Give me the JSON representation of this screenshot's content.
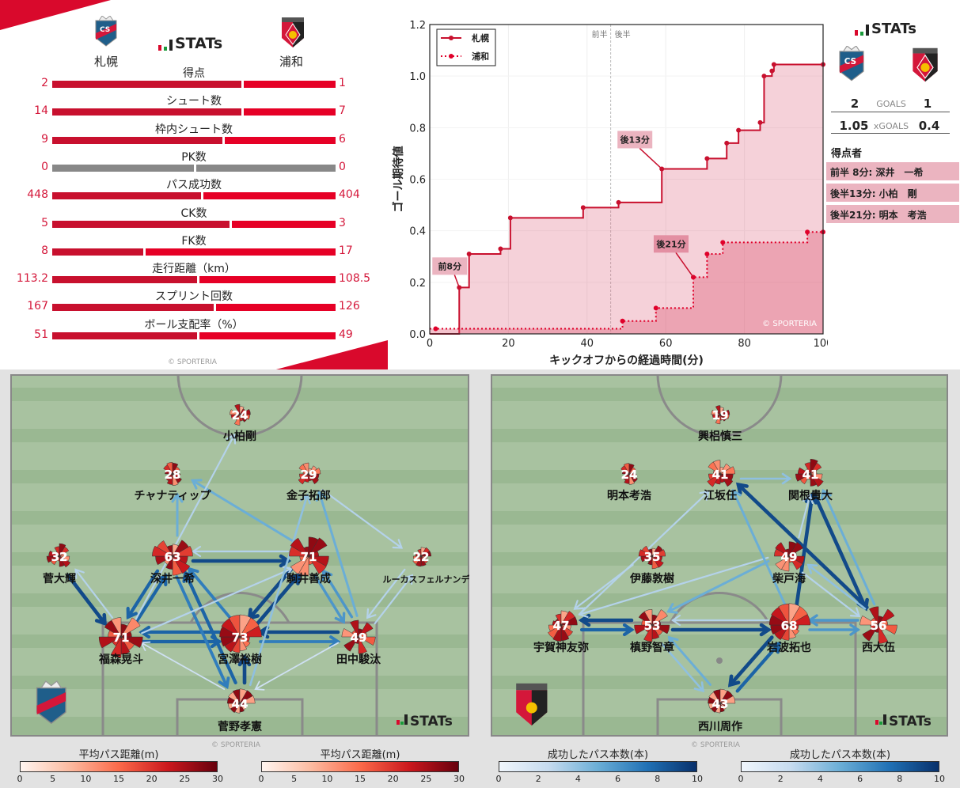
{
  "summary": {
    "stats_brand": "STATs",
    "home_team": "札幌",
    "away_team": "浦和",
    "copyright": "© SPORTERIA",
    "rows": [
      {
        "label": "得点",
        "home": "2",
        "away": "1",
        "home_num": 2,
        "away_num": 1
      },
      {
        "label": "シュート数",
        "home": "14",
        "away": "7",
        "home_num": 14,
        "away_num": 7
      },
      {
        "label": "枠内シュート数",
        "home": "9",
        "away": "6",
        "home_num": 9,
        "away_num": 6
      },
      {
        "label": "PK数",
        "home": "0",
        "away": "0",
        "home_num": 0,
        "away_num": 0
      },
      {
        "label": "パス成功数",
        "home": "448",
        "away": "404",
        "home_num": 448,
        "away_num": 404
      },
      {
        "label": "CK数",
        "home": "5",
        "away": "3",
        "home_num": 5,
        "away_num": 3
      },
      {
        "label": "FK数",
        "home": "8",
        "away": "17",
        "home_num": 8,
        "away_num": 17
      },
      {
        "label": "走行距離（km）",
        "home": "113.2",
        "away": "108.5",
        "home_num": 113.2,
        "away_num": 108.5
      },
      {
        "label": "スプリント回数",
        "home": "167",
        "away": "126",
        "home_num": 167,
        "away_num": 126
      },
      {
        "label": "ボール支配率（%）",
        "home": "51",
        "away": "49",
        "home_num": 51,
        "away_num": 49
      }
    ]
  },
  "goals_panel": {
    "brand": "STATs",
    "goals_label": "GOALS",
    "home_goals": "2",
    "away_goals": "1",
    "xgoals_label": "xGOALS",
    "home_xg": "1.05",
    "away_xg": "0.4",
    "scorers_title": "得点者",
    "scorers": [
      "前半  8分: 深井　一希",
      "後半13分: 小柏　剛",
      "後半21分: 明本　考浩"
    ]
  },
  "chart_data": {
    "type": "line",
    "step": "post",
    "xlabel": "キックオフからの経過時間(分)",
    "ylabel": "ゴール期待値",
    "xlim": [
      0,
      100
    ],
    "ylim": [
      0,
      1.2
    ],
    "xticks": [
      0,
      20,
      40,
      60,
      80,
      100
    ],
    "yticks": [
      0.0,
      0.2,
      0.4,
      0.6,
      0.8,
      1.0,
      1.2
    ],
    "halftime": 46,
    "half_labels": [
      "前半",
      "後半"
    ],
    "legend_position": "top-left",
    "watermark": "© SPORTERIA",
    "series": [
      {
        "name": "札幌",
        "style": "solid",
        "color": "#c8102e",
        "x": [
          0,
          7.5,
          10,
          18,
          20.5,
          39,
          48,
          59,
          70.5,
          75.5,
          78.5,
          84,
          85,
          87,
          87.5,
          100
        ],
        "y": [
          0,
          0.18,
          0.31,
          0.33,
          0.45,
          0.49,
          0.51,
          0.64,
          0.68,
          0.74,
          0.79,
          0.82,
          1.0,
          1.02,
          1.045,
          1.045
        ]
      },
      {
        "name": "浦和",
        "style": "dotted",
        "color": "#e0002a",
        "x": [
          1.5,
          49,
          57.5,
          67,
          70.5,
          74.5,
          96,
          100
        ],
        "y": [
          0.02,
          0.05,
          0.1,
          0.22,
          0.31,
          0.355,
          0.395,
          0.395
        ]
      }
    ],
    "annotations": [
      {
        "text": "前8分",
        "x": 7.5,
        "y": 0.18,
        "series": 0
      },
      {
        "text": "後13分",
        "x": 59,
        "y": 0.64,
        "series": 0
      },
      {
        "text": "後21分",
        "x": 67,
        "y": 0.22,
        "series": 1
      }
    ]
  },
  "pass_maps": [
    {
      "team": "札幌",
      "brand": "STATs",
      "copyright": "© SPORTERIA",
      "players": [
        {
          "name": "小柏剛",
          "passes": 24
        },
        {
          "name": "チャナティップ",
          "passes": 28
        },
        {
          "name": "金子拓郎",
          "passes": 29
        },
        {
          "name": "菅大輝",
          "passes": 32
        },
        {
          "name": "深井一希",
          "passes": 63
        },
        {
          "name": "駒井善成",
          "passes": 71
        },
        {
          "name": "ルーカスフェルナンデス",
          "passes": 22
        },
        {
          "name": "福森晃斗",
          "passes": 71
        },
        {
          "name": "宮澤裕樹",
          "passes": 73
        },
        {
          "name": "田中駿汰",
          "passes": 49
        },
        {
          "name": "菅野孝憲",
          "passes": 44
        }
      ],
      "links": [
        {
          "from": 7,
          "to": 4,
          "count": 8
        },
        {
          "from": 4,
          "to": 7,
          "count": 8
        },
        {
          "from": 3,
          "to": 7,
          "count": 9
        },
        {
          "from": 7,
          "to": 3,
          "count": 3
        },
        {
          "from": 7,
          "to": 8,
          "count": 8
        },
        {
          "from": 8,
          "to": 7,
          "count": 8
        },
        {
          "from": 8,
          "to": 9,
          "count": 7
        },
        {
          "from": 9,
          "to": 8,
          "count": 9
        },
        {
          "from": 4,
          "to": 5,
          "count": 9
        },
        {
          "from": 5,
          "to": 4,
          "count": 3
        },
        {
          "from": 8,
          "to": 5,
          "count": 9
        },
        {
          "from": 5,
          "to": 8,
          "count": 9
        },
        {
          "from": 4,
          "to": 10,
          "count": 7
        },
        {
          "from": 10,
          "to": 4,
          "count": 8
        },
        {
          "from": 8,
          "to": 4,
          "count": 7
        },
        {
          "from": 10,
          "to": 8,
          "count": 9
        },
        {
          "from": 9,
          "to": 5,
          "count": 6
        },
        {
          "from": 5,
          "to": 9,
          "count": 6
        },
        {
          "from": 9,
          "to": 2,
          "count": 5
        },
        {
          "from": 2,
          "to": 6,
          "count": 3
        },
        {
          "from": 5,
          "to": 1,
          "count": 5
        },
        {
          "from": 7,
          "to": 0,
          "count": 3
        },
        {
          "from": 4,
          "to": 1,
          "count": 5
        },
        {
          "from": 6,
          "to": 9,
          "count": 3
        },
        {
          "from": 9,
          "to": 6,
          "count": 3
        },
        {
          "from": 10,
          "to": 7,
          "count": 2
        },
        {
          "from": 9,
          "to": 10,
          "count": 2
        },
        {
          "from": 7,
          "to": 5,
          "count": 3
        },
        {
          "from": 10,
          "to": 2,
          "count": 4
        }
      ]
    },
    {
      "team": "浦和",
      "brand": "STATs",
      "copyright": "© SPORTERIA",
      "players": [
        {
          "name": "興梠慎三",
          "passes": 19
        },
        {
          "name": "明本考浩",
          "passes": 24
        },
        {
          "name": "江坂任",
          "passes": 41
        },
        {
          "name": "関根貴大",
          "passes": 41
        },
        {
          "name": "伊藤敦樹",
          "passes": 35
        },
        {
          "name": "柴戸海",
          "passes": 49
        },
        {
          "name": "宇賀神友弥",
          "passes": 47
        },
        {
          "name": "槙野智章",
          "passes": 53
        },
        {
          "name": "岩波拓也",
          "passes": 68
        },
        {
          "name": "西大伍",
          "passes": 56
        },
        {
          "name": "西川周作",
          "passes": 43
        }
      ],
      "links": [
        {
          "from": 7,
          "to": 6,
          "count": 9
        },
        {
          "from": 6,
          "to": 7,
          "count": 8
        },
        {
          "from": 7,
          "to": 8,
          "count": 9
        },
        {
          "from": 8,
          "to": 7,
          "count": 3
        },
        {
          "from": 9,
          "to": 8,
          "count": 6
        },
        {
          "from": 8,
          "to": 9,
          "count": 6
        },
        {
          "from": 7,
          "to": 10,
          "count": 4
        },
        {
          "from": 10,
          "to": 7,
          "count": 5
        },
        {
          "from": 8,
          "to": 10,
          "count": 9
        },
        {
          "from": 10,
          "to": 8,
          "count": 8
        },
        {
          "from": 8,
          "to": 3,
          "count": 9
        },
        {
          "from": 3,
          "to": 9,
          "count": 9
        },
        {
          "from": 9,
          "to": 3,
          "count": 5
        },
        {
          "from": 9,
          "to": 2,
          "count": 9
        },
        {
          "from": 5,
          "to": 7,
          "count": 5
        },
        {
          "from": 5,
          "to": 6,
          "count": 3
        },
        {
          "from": 6,
          "to": 2,
          "count": 3
        },
        {
          "from": 2,
          "to": 3,
          "count": 4
        },
        {
          "from": 8,
          "to": 2,
          "count": 5
        },
        {
          "from": 9,
          "to": 5,
          "count": 4
        },
        {
          "from": 5,
          "to": 9,
          "count": 3
        },
        {
          "from": 4,
          "to": 6,
          "count": 3
        },
        {
          "from": 5,
          "to": 3,
          "count": 3
        }
      ]
    }
  ],
  "colorbars": {
    "distance_title": "平均パス距離(m)",
    "distance_ticks": [
      "0",
      "5",
      "10",
      "15",
      "20",
      "25",
      "30"
    ],
    "count_title": "成功したパス本数(本)",
    "count_ticks": [
      "0",
      "2",
      "4",
      "6",
      "8",
      "10"
    ]
  }
}
